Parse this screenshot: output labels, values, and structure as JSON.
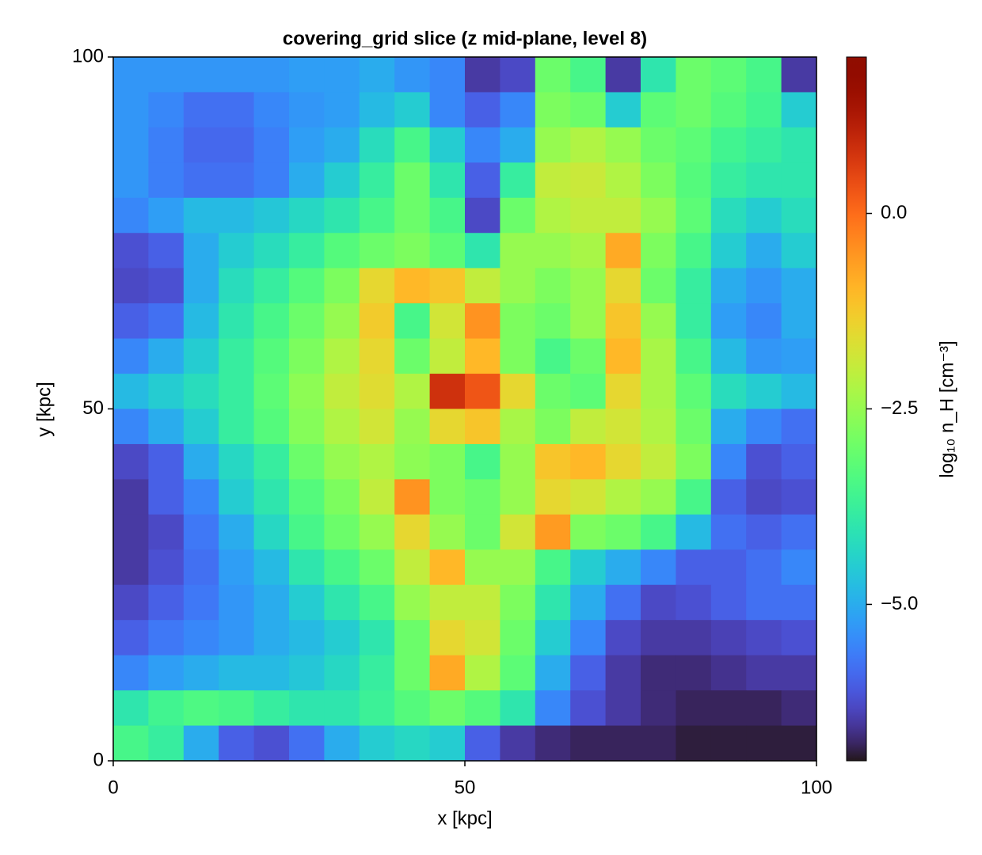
{
  "chart_data": {
    "type": "heatmap",
    "title": "covering_grid slice (z mid-plane, level 8)",
    "xlabel": "x [kpc]",
    "ylabel": "y [kpc]",
    "colorbar_label": "log₁₀ n_H [cm⁻³]",
    "colormap": "turbo",
    "xlim": [
      0,
      100
    ],
    "ylim": [
      0,
      100
    ],
    "xticks": [
      0,
      50,
      100
    ],
    "yticks": [
      0,
      50,
      100
    ],
    "zlim": [
      -7,
      2
    ],
    "cticks": [
      {
        "value": 0,
        "label": "0.0"
      },
      {
        "value": -2.5,
        "label": "−2.5"
      },
      {
        "value": -5,
        "label": "−5.0"
      }
    ],
    "x": [
      2.5,
      7.5,
      12.5,
      17.5,
      22.5,
      27.5,
      32.5,
      37.5,
      42.5,
      47.5,
      52.5,
      57.5,
      62.5,
      67.5,
      72.5,
      77.5,
      82.5,
      87.5,
      92.5,
      97.5
    ],
    "y": [
      97.5,
      92.5,
      87.5,
      82.5,
      77.5,
      72.5,
      67.5,
      62.5,
      57.5,
      52.5,
      47.5,
      42.5,
      37.5,
      32.5,
      27.5,
      22.5,
      17.5,
      12.5,
      7.5,
      2.5
    ],
    "z": [
      [
        -5.3,
        -5.3,
        -5.3,
        -5.3,
        -5.3,
        -5.2,
        -5.2,
        -5.0,
        -5.3,
        -5.5,
        -6.5,
        -6.3,
        -3.0,
        -3.5,
        -6.5,
        -4.0,
        -3.0,
        -3.2,
        -3.5,
        -6.5
      ],
      [
        -5.3,
        -5.5,
        -5.8,
        -5.8,
        -5.5,
        -5.3,
        -5.2,
        -4.8,
        -4.5,
        -5.5,
        -6.0,
        -5.5,
        -2.8,
        -3.0,
        -4.5,
        -3.2,
        -3.0,
        -3.3,
        -3.6,
        -4.5
      ],
      [
        -5.3,
        -5.6,
        -5.9,
        -5.9,
        -5.6,
        -5.2,
        -5.0,
        -4.2,
        -3.5,
        -4.5,
        -5.5,
        -5.0,
        -2.5,
        -2.2,
        -2.5,
        -3.0,
        -3.2,
        -3.6,
        -3.8,
        -4.0
      ],
      [
        -5.3,
        -5.6,
        -5.8,
        -5.8,
        -5.6,
        -5.0,
        -4.5,
        -3.8,
        -3.0,
        -4.0,
        -6.0,
        -3.8,
        -2.0,
        -1.9,
        -2.2,
        -2.8,
        -3.3,
        -3.8,
        -4.0,
        -4.0
      ],
      [
        -5.5,
        -5.2,
        -4.8,
        -4.8,
        -4.6,
        -4.3,
        -4.0,
        -3.5,
        -3.0,
        -3.5,
        -6.3,
        -3.0,
        -2.2,
        -2.0,
        -2.0,
        -2.5,
        -3.2,
        -4.2,
        -4.5,
        -4.2
      ],
      [
        -6.2,
        -6.0,
        -5.0,
        -4.5,
        -4.2,
        -3.8,
        -3.3,
        -3.0,
        -2.8,
        -3.2,
        -4.0,
        -2.5,
        -2.5,
        -2.3,
        -0.8,
        -2.8,
        -3.5,
        -4.5,
        -5.0,
        -4.5
      ],
      [
        -6.3,
        -6.2,
        -5.0,
        -4.2,
        -3.8,
        -3.3,
        -2.8,
        -1.5,
        -1.0,
        -1.2,
        -2.0,
        -2.5,
        -2.8,
        -2.5,
        -1.5,
        -3.0,
        -3.8,
        -5.0,
        -5.3,
        -5.0
      ],
      [
        -6.0,
        -5.8,
        -4.8,
        -4.0,
        -3.5,
        -3.0,
        -2.5,
        -1.3,
        -3.5,
        -1.8,
        -0.5,
        -2.8,
        -3.0,
        -2.5,
        -1.2,
        -2.5,
        -3.8,
        -5.2,
        -5.5,
        -5.0
      ],
      [
        -5.5,
        -5.0,
        -4.5,
        -3.8,
        -3.3,
        -2.8,
        -2.2,
        -1.5,
        -3.0,
        -2.0,
        -1.0,
        -2.8,
        -3.5,
        -3.0,
        -1.0,
        -2.3,
        -3.5,
        -4.8,
        -5.3,
        -5.2
      ],
      [
        -4.8,
        -4.5,
        -4.2,
        -3.8,
        -3.2,
        -2.6,
        -2.0,
        -1.6,
        -2.2,
        0.8,
        0.3,
        -1.5,
        -3.0,
        -3.2,
        -1.5,
        -2.3,
        -3.2,
        -4.2,
        -4.5,
        -4.8
      ],
      [
        -5.5,
        -5.0,
        -4.5,
        -3.8,
        -3.3,
        -2.7,
        -2.2,
        -1.8,
        -2.5,
        -1.5,
        -1.2,
        -2.3,
        -2.8,
        -2.0,
        -1.8,
        -2.2,
        -3.0,
        -5.0,
        -5.5,
        -5.8
      ],
      [
        -6.3,
        -6.0,
        -5.0,
        -4.3,
        -3.8,
        -3.0,
        -2.5,
        -2.2,
        -2.6,
        -2.8,
        -3.5,
        -2.5,
        -1.2,
        -1.0,
        -1.5,
        -2.0,
        -2.8,
        -5.5,
        -6.2,
        -6.0
      ],
      [
        -6.5,
        -6.0,
        -5.5,
        -4.5,
        -4.0,
        -3.3,
        -2.8,
        -2.0,
        -0.5,
        -2.8,
        -3.0,
        -2.5,
        -1.5,
        -1.8,
        -2.2,
        -2.5,
        -3.5,
        -6.0,
        -6.3,
        -6.2
      ],
      [
        -6.5,
        -6.3,
        -5.7,
        -5.0,
        -4.3,
        -3.5,
        -3.0,
        -2.5,
        -1.5,
        -2.5,
        -3.0,
        -1.8,
        -0.6,
        -2.8,
        -3.0,
        -3.5,
        -4.8,
        -5.8,
        -6.0,
        -5.8
      ],
      [
        -6.5,
        -6.2,
        -5.8,
        -5.2,
        -4.8,
        -4.0,
        -3.5,
        -3.0,
        -2.0,
        -1.0,
        -2.5,
        -2.5,
        -3.5,
        -4.5,
        -5.0,
        -5.5,
        -6.0,
        -6.0,
        -5.8,
        -5.5
      ],
      [
        -6.3,
        -6.0,
        -5.7,
        -5.3,
        -5.0,
        -4.5,
        -4.0,
        -3.5,
        -2.5,
        -2.0,
        -2.0,
        -2.8,
        -4.0,
        -5.0,
        -5.8,
        -6.3,
        -6.2,
        -6.0,
        -5.8,
        -5.8
      ],
      [
        -6.0,
        -5.7,
        -5.5,
        -5.3,
        -5.0,
        -4.8,
        -4.5,
        -4.0,
        -3.0,
        -1.5,
        -1.8,
        -3.0,
        -4.5,
        -5.5,
        -6.3,
        -6.5,
        -6.5,
        -6.4,
        -6.3,
        -6.2
      ],
      [
        -5.5,
        -5.2,
        -5.0,
        -4.8,
        -4.8,
        -4.6,
        -4.3,
        -3.8,
        -3.0,
        -0.8,
        -2.2,
        -3.2,
        -5.0,
        -6.0,
        -6.5,
        -6.7,
        -6.7,
        -6.6,
        -6.5,
        -6.5
      ],
      [
        -4.0,
        -3.6,
        -3.4,
        -3.5,
        -3.8,
        -4.0,
        -4.0,
        -3.7,
        -3.3,
        -3.0,
        -3.3,
        -4.0,
        -5.5,
        -6.2,
        -6.5,
        -6.7,
        -6.8,
        -6.8,
        -6.8,
        -6.7
      ],
      [
        -3.5,
        -3.8,
        -5.0,
        -6.0,
        -6.2,
        -5.8,
        -5.0,
        -4.5,
        -4.3,
        -4.5,
        -6.0,
        -6.5,
        -6.7,
        -6.8,
        -6.8,
        -6.8,
        -6.9,
        -6.9,
        -6.9,
        -6.9
      ]
    ]
  }
}
